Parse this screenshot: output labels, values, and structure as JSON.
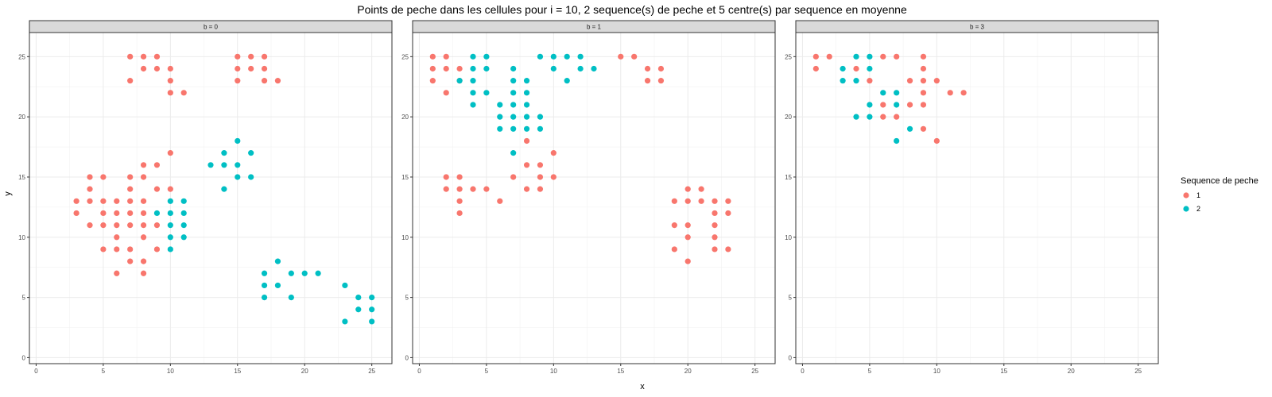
{
  "chart_data": {
    "type": "scatter",
    "title": "Points de peche dans les cellules pour i = 10, 2 sequence(s) de peche et 5 centre(s) par sequence en moyenne",
    "xlabel": "x",
    "ylabel": "y",
    "xlim": [
      -0.5,
      26.5
    ],
    "ylim": [
      -0.5,
      27
    ],
    "x_ticks": [
      0,
      5,
      10,
      15,
      20,
      25
    ],
    "y_ticks": [
      0,
      5,
      10,
      15,
      20,
      25
    ],
    "grid": true,
    "legend": {
      "title": "Sequence de peche",
      "placement": "right",
      "entries": [
        {
          "label": "1",
          "color": "#F8766D"
        },
        {
          "label": "2",
          "color": "#00BFC4"
        }
      ]
    },
    "panels": [
      {
        "strip": "b = 0",
        "series": [
          {
            "name": "1",
            "color": "#F8766D",
            "points": [
              [
                7,
                25
              ],
              [
                8,
                25
              ],
              [
                9,
                25
              ],
              [
                8,
                24
              ],
              [
                9,
                24
              ],
              [
                10,
                24
              ],
              [
                7,
                23
              ],
              [
                10,
                23
              ],
              [
                10,
                22
              ],
              [
                11,
                22
              ],
              [
                15,
                25
              ],
              [
                16,
                25
              ],
              [
                17,
                25
              ],
              [
                15,
                24
              ],
              [
                16,
                24
              ],
              [
                17,
                24
              ],
              [
                15,
                23
              ],
              [
                17,
                23
              ],
              [
                18,
                23
              ],
              [
                10,
                17
              ],
              [
                8,
                16
              ],
              [
                9,
                16
              ],
              [
                4,
                15
              ],
              [
                5,
                15
              ],
              [
                7,
                15
              ],
              [
                8,
                15
              ],
              [
                4,
                14
              ],
              [
                7,
                14
              ],
              [
                9,
                14
              ],
              [
                10,
                14
              ],
              [
                3,
                13
              ],
              [
                4,
                13
              ],
              [
                5,
                13
              ],
              [
                6,
                13
              ],
              [
                7,
                13
              ],
              [
                8,
                13
              ],
              [
                3,
                12
              ],
              [
                5,
                12
              ],
              [
                6,
                12
              ],
              [
                7,
                12
              ],
              [
                8,
                12
              ],
              [
                4,
                11
              ],
              [
                5,
                11
              ],
              [
                6,
                11
              ],
              [
                7,
                11
              ],
              [
                8,
                11
              ],
              [
                9,
                11
              ],
              [
                6,
                10
              ],
              [
                8,
                10
              ],
              [
                5,
                9
              ],
              [
                6,
                9
              ],
              [
                7,
                9
              ],
              [
                9,
                9
              ],
              [
                7,
                8
              ],
              [
                8,
                8
              ],
              [
                6,
                7
              ],
              [
                8,
                7
              ]
            ]
          },
          {
            "name": "2",
            "color": "#00BFC4",
            "points": [
              [
                10,
                13
              ],
              [
                11,
                13
              ],
              [
                9,
                12
              ],
              [
                10,
                12
              ],
              [
                11,
                12
              ],
              [
                10,
                11
              ],
              [
                11,
                11
              ],
              [
                10,
                10
              ],
              [
                11,
                10
              ],
              [
                10,
                9
              ],
              [
                15,
                18
              ],
              [
                14,
                17
              ],
              [
                16,
                17
              ],
              [
                13,
                16
              ],
              [
                14,
                16
              ],
              [
                15,
                16
              ],
              [
                15,
                15
              ],
              [
                16,
                15
              ],
              [
                14,
                14
              ],
              [
                18,
                8
              ],
              [
                17,
                7
              ],
              [
                19,
                7
              ],
              [
                20,
                7
              ],
              [
                21,
                7
              ],
              [
                17,
                6
              ],
              [
                18,
                6
              ],
              [
                17,
                5
              ],
              [
                19,
                5
              ],
              [
                23,
                6
              ],
              [
                24,
                5
              ],
              [
                25,
                5
              ],
              [
                24,
                4
              ],
              [
                25,
                4
              ],
              [
                23,
                3
              ],
              [
                25,
                3
              ]
            ]
          }
        ]
      },
      {
        "strip": "b = 1",
        "series": [
          {
            "name": "1",
            "color": "#F8766D",
            "points": [
              [
                1,
                25
              ],
              [
                2,
                25
              ],
              [
                1,
                24
              ],
              [
                2,
                24
              ],
              [
                3,
                24
              ],
              [
                1,
                23
              ],
              [
                3,
                23
              ],
              [
                2,
                22
              ],
              [
                15,
                25
              ],
              [
                16,
                25
              ],
              [
                17,
                24
              ],
              [
                18,
                24
              ],
              [
                17,
                23
              ],
              [
                18,
                23
              ],
              [
                8,
                18
              ],
              [
                10,
                17
              ],
              [
                8,
                16
              ],
              [
                9,
                16
              ],
              [
                2,
                15
              ],
              [
                3,
                15
              ],
              [
                7,
                15
              ],
              [
                9,
                15
              ],
              [
                10,
                15
              ],
              [
                2,
                14
              ],
              [
                3,
                14
              ],
              [
                4,
                14
              ],
              [
                5,
                14
              ],
              [
                8,
                14
              ],
              [
                9,
                14
              ],
              [
                3,
                13
              ],
              [
                6,
                13
              ],
              [
                3,
                12
              ],
              [
                20,
                14
              ],
              [
                21,
                14
              ],
              [
                19,
                13
              ],
              [
                20,
                13
              ],
              [
                21,
                13
              ],
              [
                22,
                13
              ],
              [
                23,
                13
              ],
              [
                22,
                12
              ],
              [
                23,
                12
              ],
              [
                19,
                11
              ],
              [
                20,
                11
              ],
              [
                22,
                11
              ],
              [
                20,
                10
              ],
              [
                22,
                10
              ],
              [
                19,
                9
              ],
              [
                22,
                9
              ],
              [
                23,
                9
              ],
              [
                20,
                8
              ]
            ]
          },
          {
            "name": "2",
            "color": "#00BFC4",
            "points": [
              [
                4,
                25
              ],
              [
                5,
                25
              ],
              [
                4,
                24
              ],
              [
                5,
                24
              ],
              [
                4,
                23
              ],
              [
                3,
                23
              ],
              [
                4,
                22
              ],
              [
                5,
                22
              ],
              [
                4,
                21
              ],
              [
                9,
                25
              ],
              [
                10,
                25
              ],
              [
                11,
                25
              ],
              [
                12,
                25
              ],
              [
                10,
                24
              ],
              [
                12,
                24
              ],
              [
                13,
                24
              ],
              [
                11,
                23
              ],
              [
                7,
                24
              ],
              [
                7,
                23
              ],
              [
                8,
                23
              ],
              [
                7,
                22
              ],
              [
                8,
                22
              ],
              [
                6,
                21
              ],
              [
                7,
                21
              ],
              [
                8,
                21
              ],
              [
                6,
                20
              ],
              [
                7,
                20
              ],
              [
                8,
                20
              ],
              [
                9,
                20
              ],
              [
                6,
                19
              ],
              [
                7,
                19
              ],
              [
                9,
                19
              ],
              [
                8,
                19
              ],
              [
                7,
                17
              ]
            ]
          }
        ]
      },
      {
        "strip": "b = 3",
        "series": [
          {
            "name": "1",
            "color": "#F8766D",
            "points": [
              [
                1,
                25
              ],
              [
                2,
                25
              ],
              [
                6,
                25
              ],
              [
                7,
                25
              ],
              [
                9,
                25
              ],
              [
                1,
                24
              ],
              [
                4,
                24
              ],
              [
                9,
                24
              ],
              [
                5,
                23
              ],
              [
                8,
                23
              ],
              [
                9,
                23
              ],
              [
                10,
                23
              ],
              [
                9,
                22
              ],
              [
                11,
                22
              ],
              [
                12,
                22
              ],
              [
                6,
                21
              ],
              [
                8,
                21
              ],
              [
                9,
                21
              ],
              [
                6,
                20
              ],
              [
                7,
                20
              ],
              [
                9,
                19
              ],
              [
                10,
                18
              ]
            ]
          },
          {
            "name": "2",
            "color": "#00BFC4",
            "points": [
              [
                4,
                25
              ],
              [
                5,
                25
              ],
              [
                3,
                24
              ],
              [
                5,
                24
              ],
              [
                3,
                23
              ],
              [
                4,
                23
              ],
              [
                6,
                22
              ],
              [
                7,
                22
              ],
              [
                5,
                21
              ],
              [
                7,
                21
              ],
              [
                4,
                20
              ],
              [
                5,
                20
              ],
              [
                8,
                19
              ],
              [
                7,
                18
              ]
            ]
          }
        ]
      }
    ]
  }
}
